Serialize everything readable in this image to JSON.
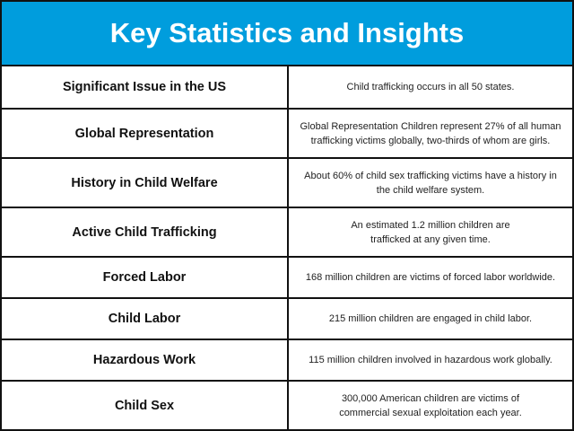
{
  "title": "Key Statistics and Insights",
  "accent_color": "#009ddd",
  "rows": [
    {
      "label": "Significant Issue in the US",
      "text": "Child trafficking occurs in all 50 states."
    },
    {
      "label": "Global Representation",
      "text": "Global Representation Children represent 27% of all human trafficking victims globally, two-thirds of whom are girls."
    },
    {
      "label": "History in Child Welfare",
      "text": "About 60% of child sex trafficking victims have a history in the child welfare system."
    },
    {
      "label": "Active Child Trafficking",
      "text": "An estimated 1.2 million children are trafficked at any given time."
    },
    {
      "label": "Forced Labor",
      "text": "168 million children are victims of forced labor worldwide."
    },
    {
      "label": "Child Labor",
      "text": "215 million children are engaged in child labor."
    },
    {
      "label": "Hazardous Work",
      "text": "115 million children involved in hazardous work globally."
    },
    {
      "label": "Child Sex",
      "text": "300,000 American children are victims of commercial sexual exploitation each year."
    }
  ]
}
